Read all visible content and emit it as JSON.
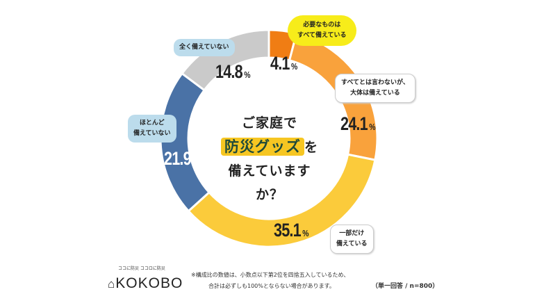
{
  "chart_data": {
    "type": "pie",
    "title": "ご家庭で防災グッズを備えていますか？",
    "title_parts": {
      "line1": "ご家庭で",
      "highlight": "防災グッズ",
      "suffix": "を",
      "line3": "備えていますか？"
    },
    "unit": "%",
    "slices": [
      {
        "label_lines": [
          "必要なものは",
          "すべて備えている"
        ],
        "value": 4.1,
        "display": "4.1",
        "color": "#f07d14"
      },
      {
        "label_lines": [
          "すべてとは言わないが、",
          "大体は備えている"
        ],
        "value": 24.1,
        "display": "24.1",
        "color": "#f9a23c"
      },
      {
        "label_lines": [
          "一部だけ",
          "備えている"
        ],
        "value": 35.1,
        "display": "35.1",
        "color": "#fbcb3b"
      },
      {
        "label_lines": [
          "ほとんど",
          "備えていない"
        ],
        "value": 21.9,
        "display": "21.9",
        "color": "#4a72a6"
      },
      {
        "label_lines": [
          "全く備えていない"
        ],
        "value": 14.8,
        "display": "14.8",
        "color": "#cacaca"
      }
    ]
  },
  "footer": {
    "logo_tagline": "ココに防災 ココロに防災",
    "logo_text": "KOKOBO",
    "note_line1": "※構成比の数値は、小数点以下第2位を四捨五入しているため、",
    "note_line2": "合計は必ずしも100%とならない場合があります。",
    "sample": "（単一回答 / n=800）"
  }
}
